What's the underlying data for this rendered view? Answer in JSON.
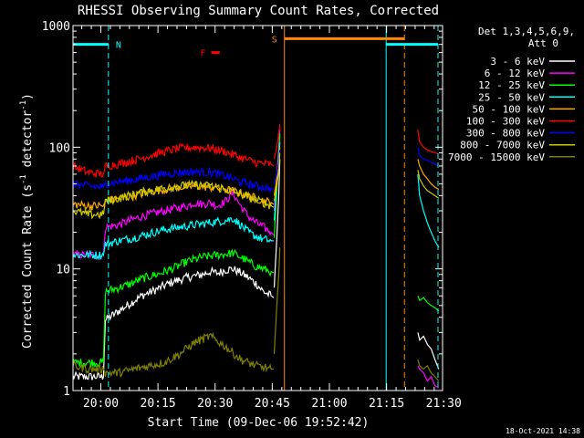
{
  "chart_data": {
    "type": "line",
    "title": "RHESSI Observing Summary Count Rates, Corrected",
    "xlabel": "Start Time (09-Dec-06 19:52:42)",
    "ylabel_main": "Corrected Count Rate (s",
    "ylabel_sup1": "-1",
    "ylabel_mid": " detector",
    "ylabel_sup2": "-1",
    "ylabel_end": ")",
    "yscale": "log",
    "ylim": [
      1,
      1000
    ],
    "xlim_min": [
      0,
      97
    ],
    "y_ticks": [
      "1",
      "10",
      "100",
      "1000"
    ],
    "x_ticks": [
      {
        "label": "20:00",
        "min": 7.3
      },
      {
        "label": "20:15",
        "min": 22.3
      },
      {
        "label": "20:30",
        "min": 37.3
      },
      {
        "label": "20:45",
        "min": 52.3
      },
      {
        "label": "21:00",
        "min": 67.3
      },
      {
        "label": "21:15",
        "min": 82.3
      },
      {
        "label": "21:30",
        "min": 97.3
      }
    ],
    "legend": {
      "header_line1": "Det 1,3,4,5,6,9,",
      "header_line2": "Att 0",
      "placement": "right"
    },
    "series": [
      {
        "name": "3 - 6 keV",
        "color": "#ffffff",
        "segments": [
          {
            "x": [
              0,
              8,
              8.5,
              12,
              15,
              18,
              22,
              26,
              30,
              34,
              36,
              38,
              40,
              42,
              44,
              46,
              48,
              50,
              52,
              52.7
            ],
            "y": [
              1.3,
              1.3,
              3.8,
              4.5,
              5.2,
              6.0,
              6.8,
              7.8,
              8.5,
              9.0,
              9.5,
              9.2,
              9.8,
              10,
              9.3,
              8.5,
              7.6,
              6.5,
              6.0,
              5.8
            ]
          },
          {
            "x": [
              52.8,
              53.5,
              54,
              54.3
            ],
            "y": [
              7,
              18,
              40,
              80
            ]
          },
          {
            "x": [
              90.5,
              91,
              92,
              93,
              94,
              95,
              96
            ],
            "y": [
              3.0,
              2.6,
              2.8,
              2.4,
              2.2,
              1.8,
              1.5
            ]
          }
        ]
      },
      {
        "name": "6 - 12 keV",
        "color": "#ff00ff",
        "segments": [
          {
            "x": [
              0,
              8,
              8.5,
              12,
              15,
              18,
              22,
              26,
              30,
              32,
              34,
              36,
              38,
              40,
              42,
              44,
              46,
              48,
              50,
              52,
              52.7
            ],
            "y": [
              13,
              13,
              22,
              23,
              25,
              27,
              29,
              31,
              33,
              35,
              34,
              35,
              33,
              36,
              42,
              33,
              27,
              24,
              22,
              20,
              19
            ]
          },
          {
            "x": [
              52.8,
              53.5,
              54,
              54.3
            ],
            "y": [
              30,
              60,
              100,
              140
            ]
          },
          {
            "x": [
              90.5,
              91,
              92,
              93,
              94,
              95,
              96
            ],
            "y": [
              1.6,
              1.5,
              1.4,
              1.2,
              1.3,
              1.1,
              1.05
            ]
          }
        ]
      },
      {
        "name": "12 - 25 keV",
        "color": "#00ff00",
        "segments": [
          {
            "x": [
              0,
              8,
              8.5,
              12,
              15,
              18,
              22,
              26,
              30,
              34,
              38,
              42,
              44,
              46,
              48,
              50,
              52,
              52.7
            ],
            "y": [
              1.7,
              1.7,
              6.5,
              7.0,
              7.5,
              8.3,
              9.0,
              10,
              11.5,
              12.5,
              13,
              13.5,
              12.5,
              11.5,
              10.5,
              10,
              9.5,
              9.3
            ]
          },
          {
            "x": [
              52.8,
              53.5,
              54,
              54.3
            ],
            "y": [
              18,
              45,
              90,
              130
            ]
          },
          {
            "x": [
              90.5,
              91,
              92,
              93,
              94,
              95,
              96
            ],
            "y": [
              6.0,
              5.5,
              5.8,
              5.3,
              5.0,
              4.8,
              4.5
            ]
          }
        ]
      },
      {
        "name": "25 - 50 keV",
        "color": "#00ffff",
        "segments": [
          {
            "x": [
              0,
              4,
              8,
              8.5,
              12,
              16,
              20,
              24,
              28,
              32,
              36,
              40,
              42,
              44,
              46,
              48,
              50,
              52,
              52.7
            ],
            "y": [
              13,
              13,
              13,
              16,
              17,
              18,
              19.5,
              21,
              22,
              23,
              24,
              25,
              26,
              23,
              20,
              18.5,
              17.5,
              17,
              17
            ]
          },
          {
            "x": [
              52.8,
              53.5,
              54,
              54.3
            ],
            "y": [
              25,
              50,
              80,
              110
            ]
          },
          {
            "x": [
              90.5,
              91,
              92,
              93,
              94,
              95,
              96
            ],
            "y": [
              60,
              40,
              30,
              24,
              20,
              17,
              15
            ]
          }
        ]
      },
      {
        "name": "50 - 100 keV",
        "color": "#ffaa00",
        "segments": [
          {
            "x": [
              0,
              4,
              8,
              8.5,
              12,
              16,
              20,
              24,
              28,
              32,
              36,
              40,
              44,
              48,
              52,
              52.7
            ],
            "y": [
              34,
              33,
              33,
              36,
              38,
              40,
              43,
              45,
              47,
              48,
              47,
              45,
              42,
              38,
              35,
              34
            ]
          },
          {
            "x": [
              52.8,
              53.5,
              54,
              54.3
            ],
            "y": [
              40,
              55,
              75,
              100
            ]
          },
          {
            "x": [
              90.5,
              91,
              92,
              93,
              94,
              95,
              96
            ],
            "y": [
              80,
              70,
              60,
              55,
              50,
              47,
              45
            ]
          }
        ]
      },
      {
        "name": "100 - 300 keV",
        "color": "#ff0000",
        "segments": [
          {
            "x": [
              0,
              4,
              8,
              8.5,
              12,
              16,
              20,
              24,
              28,
              32,
              36,
              40,
              44,
              48,
              52,
              52.7
            ],
            "y": [
              70,
              62,
              60,
              70,
              73,
              78,
              85,
              92,
              98,
              100,
              98,
              92,
              82,
              75,
              72,
              70
            ]
          },
          {
            "x": [
              52.8,
              53.5,
              54,
              54.3
            ],
            "y": [
              80,
              100,
              130,
              155
            ]
          },
          {
            "x": [
              90.5,
              91,
              92,
              93,
              94,
              95,
              96
            ],
            "y": [
              140,
              110,
              100,
              95,
              92,
              90,
              88
            ]
          }
        ]
      },
      {
        "name": "300 - 800 keV",
        "color": "#0000ff",
        "segments": [
          {
            "x": [
              0,
              4,
              8,
              8.5,
              12,
              16,
              20,
              24,
              28,
              32,
              36,
              40,
              44,
              48,
              52,
              52.7
            ],
            "y": [
              50,
              48,
              47,
              50,
              52,
              54,
              57,
              60,
              62,
              63,
              62,
              58,
              52,
              48,
              46,
              45
            ]
          },
          {
            "x": [
              52.8,
              53.5,
              54,
              54.3
            ],
            "y": [
              50,
              60,
              75,
              95
            ]
          },
          {
            "x": [
              90.5,
              91,
              92,
              93,
              94,
              95,
              96
            ],
            "y": [
              100,
              85,
              80,
              78,
              75,
              73,
              70
            ]
          }
        ]
      },
      {
        "name": "800 - 7000 keV",
        "color": "#cccc00",
        "segments": [
          {
            "x": [
              0,
              4,
              8,
              8.5,
              12,
              16,
              20,
              24,
              28,
              32,
              36,
              40,
              44,
              48,
              52,
              52.7
            ],
            "y": [
              30,
              28,
              28,
              36,
              38,
              41,
              44,
              46,
              48,
              49,
              48,
              45,
              41,
              37,
              33,
              32
            ]
          },
          {
            "x": [
              52.8,
              53.5,
              54,
              54.3
            ],
            "y": [
              36,
              48,
              65,
              90
            ]
          },
          {
            "x": [
              90.5,
              91,
              92,
              93,
              94,
              95,
              96
            ],
            "y": [
              65,
              55,
              48,
              44,
              42,
              40,
              38
            ]
          }
        ]
      },
      {
        "name": "7000 - 15000 keV",
        "color": "#808000",
        "segments": [
          {
            "x": [
              0,
              4,
              8,
              8.5,
              12,
              16,
              20,
              24,
              28,
              32,
              36,
              40,
              44,
              48,
              52,
              52.7
            ],
            "y": [
              1.6,
              1.5,
              1.5,
              1.4,
              1.4,
              1.5,
              1.6,
              1.7,
              2.0,
              2.5,
              2.8,
              2.3,
              1.8,
              1.6,
              1.5,
              1.5
            ]
          },
          {
            "x": [
              52.8,
              53.5,
              54,
              54.3
            ],
            "y": [
              2,
              5,
              9,
              15
            ]
          },
          {
            "x": [
              90.5,
              91,
              92,
              93,
              94,
              95,
              96
            ],
            "y": [
              1.8,
              1.6,
              1.5,
              1.6,
              1.4,
              1.3,
              1.2
            ]
          }
        ]
      }
    ],
    "annotations": {
      "night_bars": [
        {
          "label": "N",
          "start": 0,
          "end": 9.3
        },
        {
          "label": "",
          "start": 82.2,
          "end": 95.8
        }
      ],
      "saa_bar": {
        "label": "S",
        "start": 55.5,
        "end": 87.0
      },
      "flare_marker": {
        "label": "F",
        "start": 36.3,
        "end": 38.5,
        "y": 600
      },
      "dashed_lines": [
        {
          "x": 9.3,
          "color": "#00ffff"
        },
        {
          "x": 95.8,
          "color": "#00ffff"
        },
        {
          "x": 87.0,
          "color": "#ff8800"
        }
      ],
      "solid_lines": [
        {
          "x": 55.5,
          "color": "#ff8800"
        },
        {
          "x": 82.2,
          "color": "#00ffff"
        }
      ]
    },
    "timestamp": "18-Oct-2021 14:38"
  }
}
